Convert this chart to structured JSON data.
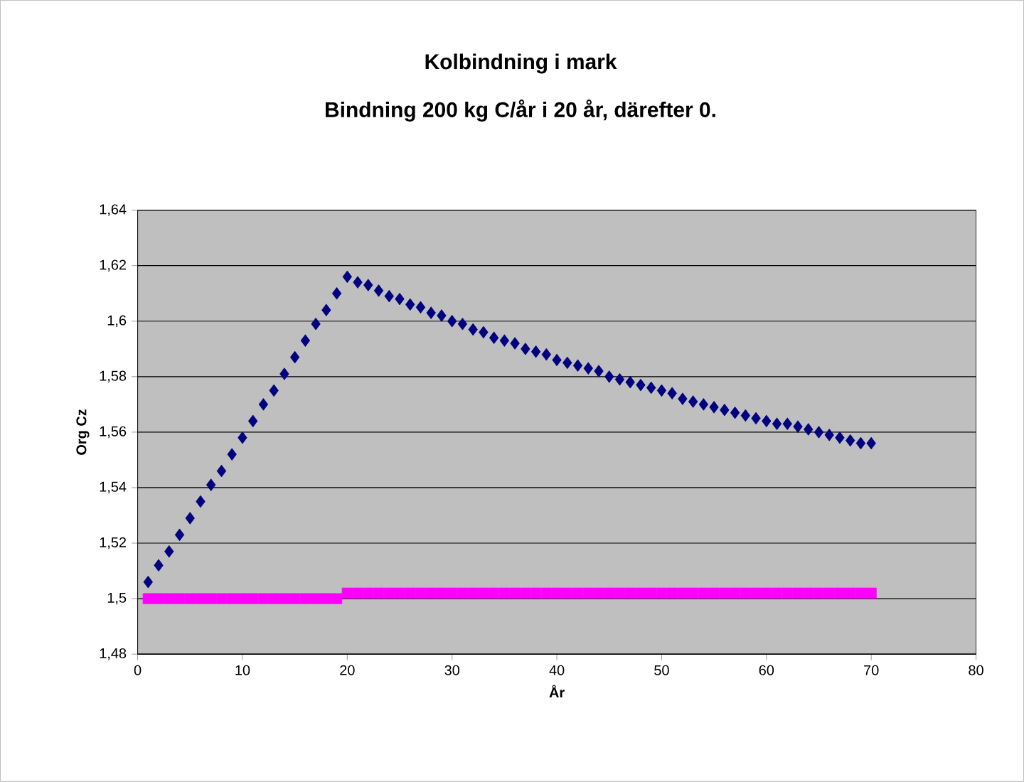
{
  "chart_data": {
    "type": "scatter",
    "title": "Kolbindning i mark",
    "subtitle": "Bindning 200 kg C/år i 20 år, därefter 0.",
    "xlabel": "År",
    "ylabel": "Org Cz",
    "x": [
      1,
      2,
      3,
      4,
      5,
      6,
      7,
      8,
      9,
      10,
      11,
      12,
      13,
      14,
      15,
      16,
      17,
      18,
      19,
      20,
      21,
      22,
      23,
      24,
      25,
      26,
      27,
      28,
      29,
      30,
      31,
      32,
      33,
      34,
      35,
      36,
      37,
      38,
      39,
      40,
      41,
      42,
      43,
      44,
      45,
      46,
      47,
      48,
      49,
      50,
      51,
      52,
      53,
      54,
      55,
      56,
      57,
      58,
      59,
      60,
      61,
      62,
      63,
      64,
      65,
      66,
      67,
      68,
      69,
      70
    ],
    "series": [
      {
        "color": "#000080",
        "marker": "diamond",
        "values": [
          1.506,
          1.512,
          1.517,
          1.523,
          1.529,
          1.535,
          1.541,
          1.546,
          1.552,
          1.558,
          1.564,
          1.57,
          1.575,
          1.581,
          1.587,
          1.593,
          1.599,
          1.604,
          1.61,
          1.616,
          1.614,
          1.613,
          1.611,
          1.609,
          1.608,
          1.606,
          1.605,
          1.603,
          1.602,
          1.6,
          1.599,
          1.597,
          1.596,
          1.594,
          1.593,
          1.592,
          1.59,
          1.589,
          1.588,
          1.586,
          1.585,
          1.584,
          1.583,
          1.582,
          1.58,
          1.579,
          1.578,
          1.577,
          1.576,
          1.575,
          1.574,
          1.572,
          1.571,
          1.57,
          1.569,
          1.568,
          1.567,
          1.566,
          1.565,
          1.564,
          1.563,
          1.563,
          1.562,
          1.561,
          1.56,
          1.559,
          1.558,
          1.557,
          1.556,
          1.556
        ]
      },
      {
        "color": "#ff00ff",
        "marker": "square",
        "values": [
          1.5,
          1.5,
          1.5,
          1.5,
          1.5,
          1.5,
          1.5,
          1.5,
          1.5,
          1.5,
          1.5,
          1.5,
          1.5,
          1.5,
          1.5,
          1.5,
          1.5,
          1.5,
          1.5,
          1.502,
          1.502,
          1.502,
          1.502,
          1.502,
          1.502,
          1.502,
          1.502,
          1.502,
          1.502,
          1.502,
          1.502,
          1.502,
          1.502,
          1.502,
          1.502,
          1.502,
          1.502,
          1.502,
          1.502,
          1.502,
          1.502,
          1.502,
          1.502,
          1.502,
          1.502,
          1.502,
          1.502,
          1.502,
          1.502,
          1.502,
          1.502,
          1.502,
          1.502,
          1.502,
          1.502,
          1.502,
          1.502,
          1.502,
          1.502,
          1.502,
          1.502,
          1.502,
          1.502,
          1.502,
          1.502,
          1.502,
          1.502,
          1.502,
          1.502,
          1.502
        ]
      }
    ],
    "xlim": [
      0,
      80
    ],
    "xticks": [
      0,
      10,
      20,
      30,
      40,
      50,
      60,
      70,
      80
    ],
    "ylim": [
      1.48,
      1.64
    ],
    "yticks": [
      {
        "value": 1.48,
        "label": "1,48"
      },
      {
        "value": 1.5,
        "label": "1,5"
      },
      {
        "value": 1.52,
        "label": "1,52"
      },
      {
        "value": 1.54,
        "label": "1,54"
      },
      {
        "value": 1.56,
        "label": "1,56"
      },
      {
        "value": 1.58,
        "label": "1,58"
      },
      {
        "value": 1.6,
        "label": "1,6"
      },
      {
        "value": 1.62,
        "label": "1,62"
      },
      {
        "value": 1.64,
        "label": "1,64"
      }
    ],
    "grid": "y"
  }
}
